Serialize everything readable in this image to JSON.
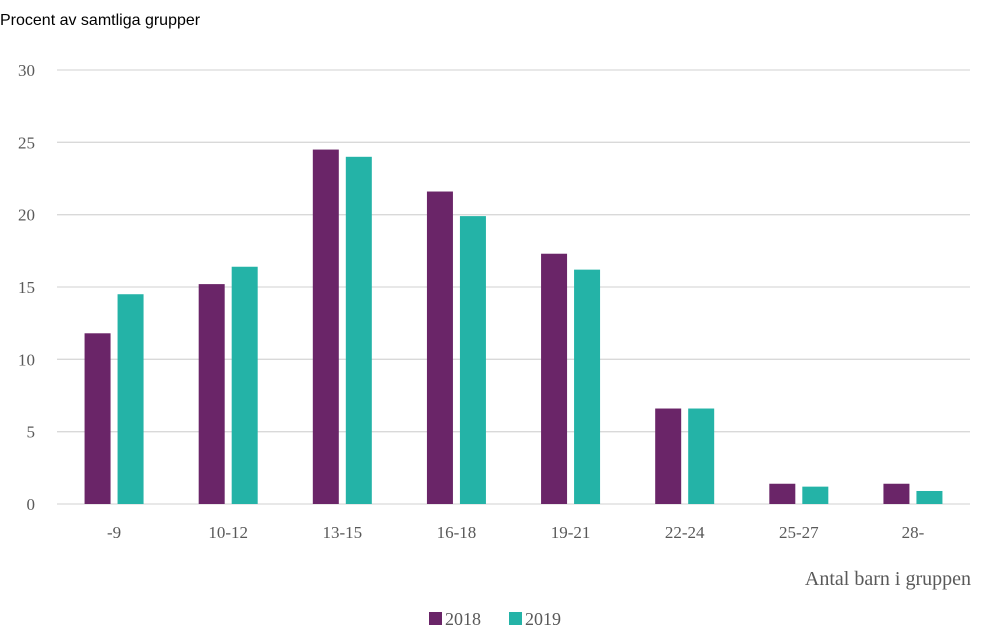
{
  "chart_data": {
    "type": "bar",
    "title": "",
    "ylabel": "Procent av samtliga grupper",
    "xlabel": "Antal barn i gruppen",
    "categories": [
      "-9",
      "10-12",
      "13-15",
      "16-18",
      "19-21",
      "22-24",
      "25-27",
      "28-"
    ],
    "series": [
      {
        "name": "2018",
        "color": "#6a2568",
        "values": [
          11.8,
          15.2,
          24.5,
          21.6,
          17.3,
          6.6,
          1.4,
          1.4
        ]
      },
      {
        "name": "2019",
        "color": "#24b3a7",
        "values": [
          14.5,
          16.4,
          24.0,
          19.9,
          16.2,
          6.6,
          1.2,
          0.9
        ]
      }
    ],
    "ylim": [
      0,
      30
    ],
    "yticks": [
      0,
      5,
      10,
      15,
      20,
      25,
      30
    ],
    "grid": true,
    "legend_position": "bottom-center"
  }
}
